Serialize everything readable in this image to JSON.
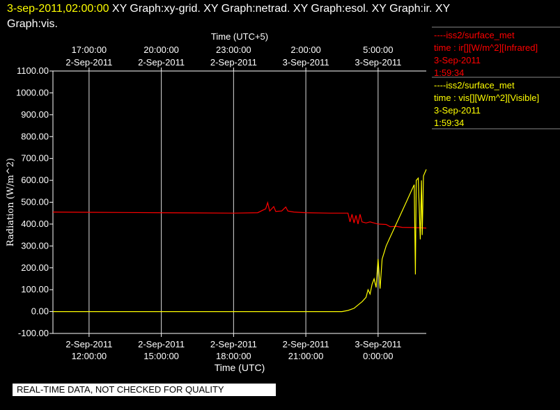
{
  "header": {
    "timestamp": "3-sep-2011,02:00:00",
    "graphs_line1": " XY Graph:xy-grid.  XY Graph:netrad.  XY Graph:esol.  XY Graph:ir.  XY",
    "graphs_line2": "Graph:vis."
  },
  "legend": [
    {
      "line1": "----iss2/surface_met",
      "line2": "time : ir[][W/m^2][Infrared]",
      "line3": "3-Sep-2011",
      "line4": "1:59:34",
      "color": "#ff0000"
    },
    {
      "line1": "----iss2/surface_met",
      "line2": "time : vis[][W/m^2][Visible]",
      "line3": "3-Sep-2011",
      "line4": "1:59:34",
      "color": "#ffff00"
    }
  ],
  "notice": "REAL-TIME DATA, NOT CHECKED FOR QUALITY",
  "chart_data": {
    "type": "line",
    "xlabel": "Time (UTC)",
    "x2label": "Time (UTC+5)",
    "ylabel": "Radiation (W/m^2)",
    "ylim": [
      -100,
      1100
    ],
    "yticks": [
      "1100.00",
      "1000.00",
      "900.00",
      "800.00",
      "700.00",
      "600.00",
      "500.00",
      "400.00",
      "300.00",
      "200.00",
      "100.00",
      "0.00",
      "-100.00"
    ],
    "xlim": [
      "2011-09-02T10:30",
      "2011-09-03T02:00"
    ],
    "xticks_bottom": [
      {
        "t": "2011-09-02T12:00",
        "line1": "2-Sep-2011",
        "line2": "12:00:00"
      },
      {
        "t": "2011-09-02T15:00",
        "line1": "2-Sep-2011",
        "line2": "15:00:00"
      },
      {
        "t": "2011-09-02T18:00",
        "line1": "2-Sep-2011",
        "line2": "18:00:00"
      },
      {
        "t": "2011-09-02T21:00",
        "line1": "2-Sep-2011",
        "line2": "21:00:00"
      },
      {
        "t": "2011-09-03T00:00",
        "line1": "3-Sep-2011",
        "line2": "0:00:00"
      }
    ],
    "xticks_top": [
      {
        "t": "2011-09-02T12:00",
        "line1": "17:00:00",
        "line2": "2-Sep-2011"
      },
      {
        "t": "2011-09-02T15:00",
        "line1": "20:00:00",
        "line2": "2-Sep-2011"
      },
      {
        "t": "2011-09-02T18:00",
        "line1": "23:00:00",
        "line2": "2-Sep-2011"
      },
      {
        "t": "2011-09-02T21:00",
        "line1": "2:00:00",
        "line2": "3-Sep-2011"
      },
      {
        "t": "2011-09-03T00:00",
        "line1": "5:00:00",
        "line2": "3-Sep-2011"
      }
    ],
    "grid": true,
    "series": [
      {
        "name": "ir",
        "color": "#ff0000",
        "points": [
          [
            "2011-09-02T10:30",
            455
          ],
          [
            "2011-09-02T12:00",
            454
          ],
          [
            "2011-09-02T13:30",
            453
          ],
          [
            "2011-09-02T15:00",
            452
          ],
          [
            "2011-09-02T16:30",
            451
          ],
          [
            "2011-09-02T18:00",
            450
          ],
          [
            "2011-09-02T19:00",
            452
          ],
          [
            "2011-09-02T19:20",
            470
          ],
          [
            "2011-09-02T19:25",
            498
          ],
          [
            "2011-09-02T19:30",
            460
          ],
          [
            "2011-09-02T19:40",
            480
          ],
          [
            "2011-09-02T19:45",
            458
          ],
          [
            "2011-09-02T20:00",
            460
          ],
          [
            "2011-09-02T20:10",
            478
          ],
          [
            "2011-09-02T20:15",
            460
          ],
          [
            "2011-09-02T20:30",
            455
          ],
          [
            "2011-09-02T21:00",
            452
          ],
          [
            "2011-09-02T22:00",
            450
          ],
          [
            "2011-09-02T22:45",
            450
          ],
          [
            "2011-09-02T22:50",
            410
          ],
          [
            "2011-09-02T22:55",
            445
          ],
          [
            "2011-09-02T23:00",
            405
          ],
          [
            "2011-09-02T23:05",
            440
          ],
          [
            "2011-09-02T23:10",
            400
          ],
          [
            "2011-09-02T23:15",
            445
          ],
          [
            "2011-09-02T23:20",
            410
          ],
          [
            "2011-09-02T23:30",
            405
          ],
          [
            "2011-09-02T23:40",
            410
          ],
          [
            "2011-09-03T00:00",
            400
          ],
          [
            "2011-09-03T00:20",
            398
          ],
          [
            "2011-09-03T00:30",
            388
          ],
          [
            "2011-09-03T00:45",
            390
          ],
          [
            "2011-09-03T01:00",
            385
          ],
          [
            "2011-09-03T01:30",
            384
          ],
          [
            "2011-09-03T02:00",
            382
          ]
        ]
      },
      {
        "name": "vis",
        "color": "#ffff00",
        "points": [
          [
            "2011-09-02T10:30",
            0
          ],
          [
            "2011-09-02T13:00",
            0
          ],
          [
            "2011-09-02T16:00",
            0
          ],
          [
            "2011-09-02T19:00",
            0
          ],
          [
            "2011-09-02T21:00",
            0
          ],
          [
            "2011-09-02T22:30",
            0
          ],
          [
            "2011-09-02T22:45",
            5
          ],
          [
            "2011-09-02T23:00",
            15
          ],
          [
            "2011-09-02T23:10",
            30
          ],
          [
            "2011-09-02T23:20",
            45
          ],
          [
            "2011-09-02T23:30",
            65
          ],
          [
            "2011-09-02T23:35",
            100
          ],
          [
            "2011-09-02T23:40",
            80
          ],
          [
            "2011-09-02T23:45",
            125
          ],
          [
            "2011-09-02T23:50",
            150
          ],
          [
            "2011-09-02T23:55",
            110
          ],
          [
            "2011-09-03T00:00",
            240
          ],
          [
            "2011-09-03T00:05",
            105
          ],
          [
            "2011-09-03T00:10",
            240
          ],
          [
            "2011-09-03T00:20",
            300
          ],
          [
            "2011-09-03T00:30",
            340
          ],
          [
            "2011-09-03T00:40",
            380
          ],
          [
            "2011-09-03T00:50",
            420
          ],
          [
            "2011-09-03T01:00",
            460
          ],
          [
            "2011-09-03T01:10",
            500
          ],
          [
            "2011-09-03T01:20",
            540
          ],
          [
            "2011-09-03T01:30",
            580
          ],
          [
            "2011-09-03T01:33",
            170
          ],
          [
            "2011-09-03T01:35",
            600
          ],
          [
            "2011-09-03T01:40",
            610
          ],
          [
            "2011-09-03T01:45",
            330
          ],
          [
            "2011-09-03T01:48",
            600
          ],
          [
            "2011-09-03T01:50",
            350
          ],
          [
            "2011-09-03T01:53",
            620
          ],
          [
            "2011-09-03T02:00",
            650
          ]
        ]
      }
    ]
  }
}
